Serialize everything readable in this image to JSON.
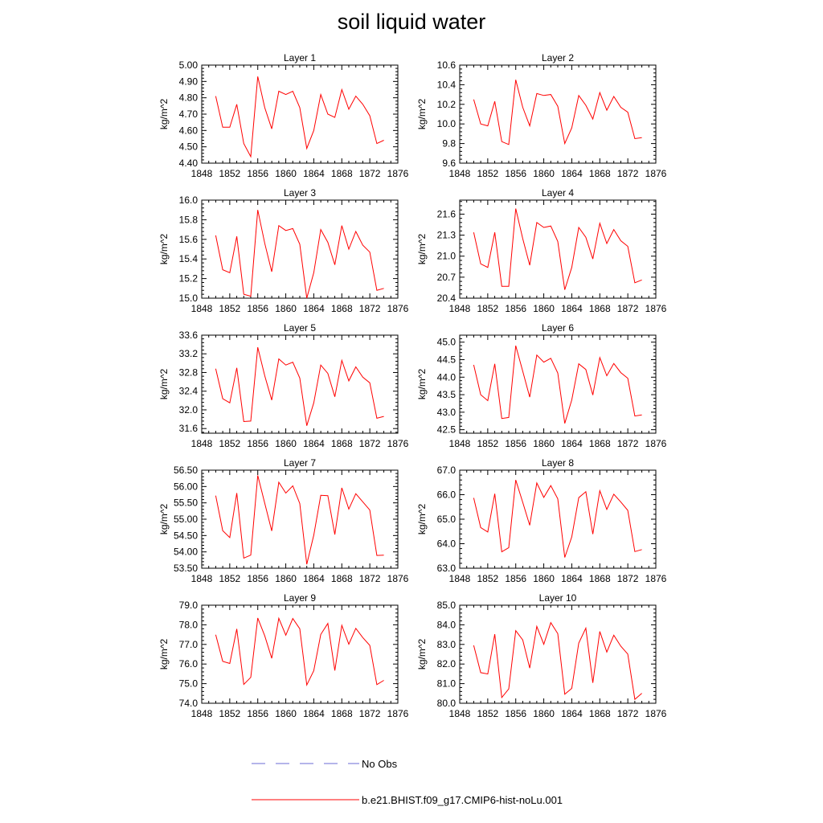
{
  "title": "soil liquid water",
  "colors": {
    "model": "#ff0000",
    "obs": "#6b6bd6",
    "axis": "#000000"
  },
  "legend": {
    "items": [
      {
        "label": "No Obs",
        "style": "dashed",
        "color": "#6b6bd6"
      },
      {
        "label": "b.e21.BHIST.f09_g17.CMIP6-hist-noLu.001",
        "style": "solid",
        "color": "#ff0000"
      }
    ]
  },
  "chart_data": [
    {
      "type": "line",
      "title": "Layer 1",
      "xlabel": "",
      "ylabel": "kg/m^2",
      "xlim": [
        1848,
        1876
      ],
      "ylim": [
        4.4,
        5.0
      ],
      "xticks": [
        1848,
        1852,
        1856,
        1860,
        1864,
        1868,
        1872,
        1876
      ],
      "yticks": [
        "4.40",
        "4.50",
        "4.60",
        "4.70",
        "4.80",
        "4.90",
        "5.00"
      ],
      "x": [
        1850,
        1851,
        1852,
        1853,
        1854,
        1855,
        1856,
        1857,
        1858,
        1859,
        1860,
        1861,
        1862,
        1863,
        1864,
        1865,
        1866,
        1867,
        1868,
        1869,
        1870,
        1871,
        1872,
        1873,
        1874
      ],
      "series": [
        {
          "values": [
            4.81,
            4.62,
            4.62,
            4.76,
            4.52,
            4.44,
            4.93,
            4.74,
            4.61,
            4.84,
            4.82,
            4.84,
            4.74,
            4.49,
            4.6,
            4.82,
            4.7,
            4.68,
            4.85,
            4.73,
            4.81,
            4.76,
            4.69,
            4.52,
            4.54
          ]
        }
      ]
    },
    {
      "type": "line",
      "title": "Layer 2",
      "xlabel": "",
      "ylabel": "kg/m^2",
      "xlim": [
        1848,
        1876
      ],
      "ylim": [
        9.6,
        10.6
      ],
      "xticks": [
        1848,
        1852,
        1856,
        1860,
        1864,
        1868,
        1872,
        1876
      ],
      "yticks": [
        "9.6",
        "9.8",
        "10.0",
        "10.2",
        "10.4",
        "10.6"
      ],
      "x": [
        1850,
        1851,
        1852,
        1853,
        1854,
        1855,
        1856,
        1857,
        1858,
        1859,
        1860,
        1861,
        1862,
        1863,
        1864,
        1865,
        1866,
        1867,
        1868,
        1869,
        1870,
        1871,
        1872,
        1873,
        1874
      ],
      "series": [
        {
          "values": [
            10.25,
            10.0,
            9.98,
            10.23,
            9.82,
            9.79,
            10.45,
            10.17,
            9.98,
            10.31,
            10.29,
            10.3,
            10.18,
            9.8,
            9.96,
            10.29,
            10.19,
            10.05,
            10.32,
            10.14,
            10.28,
            10.17,
            10.12,
            9.85,
            9.86
          ]
        }
      ]
    },
    {
      "type": "line",
      "title": "Layer 3",
      "xlabel": "",
      "ylabel": "kg/m^2",
      "xlim": [
        1848,
        1876
      ],
      "ylim": [
        15.0,
        16.0
      ],
      "xticks": [
        1848,
        1852,
        1856,
        1860,
        1864,
        1868,
        1872,
        1876
      ],
      "yticks": [
        "15.0",
        "15.2",
        "15.4",
        "15.6",
        "15.8",
        "16.0"
      ],
      "x": [
        1850,
        1851,
        1852,
        1853,
        1854,
        1855,
        1856,
        1857,
        1858,
        1859,
        1860,
        1861,
        1862,
        1863,
        1864,
        1865,
        1866,
        1867,
        1868,
        1869,
        1870,
        1871,
        1872,
        1873,
        1874
      ],
      "series": [
        {
          "values": [
            15.64,
            15.29,
            15.26,
            15.63,
            15.04,
            15.02,
            15.9,
            15.56,
            15.27,
            15.74,
            15.69,
            15.71,
            15.55,
            15.0,
            15.26,
            15.7,
            15.57,
            15.34,
            15.74,
            15.5,
            15.68,
            15.54,
            15.47,
            15.08,
            15.1
          ]
        }
      ]
    },
    {
      "type": "line",
      "title": "Layer 4",
      "xlabel": "",
      "ylabel": "kg/m^2",
      "xlim": [
        1848,
        1876
      ],
      "ylim": [
        20.4,
        21.8
      ],
      "xticks": [
        1848,
        1852,
        1856,
        1860,
        1864,
        1868,
        1872,
        1876
      ],
      "yticks": [
        "20.4",
        "20.7",
        "21.0",
        "21.3",
        "21.6"
      ],
      "x": [
        1850,
        1851,
        1852,
        1853,
        1854,
        1855,
        1856,
        1857,
        1858,
        1859,
        1860,
        1861,
        1862,
        1863,
        1864,
        1865,
        1866,
        1867,
        1868,
        1869,
        1870,
        1871,
        1872,
        1873,
        1874
      ],
      "series": [
        {
          "values": [
            21.34,
            20.89,
            20.84,
            21.34,
            20.57,
            20.57,
            21.68,
            21.25,
            20.87,
            21.48,
            21.41,
            21.43,
            21.21,
            20.52,
            20.84,
            21.41,
            21.27,
            20.96,
            21.47,
            21.18,
            21.38,
            21.22,
            21.14,
            20.62,
            20.66
          ]
        }
      ]
    },
    {
      "type": "line",
      "title": "Layer 5",
      "xlabel": "",
      "ylabel": "kg/m^2",
      "xlim": [
        1848,
        1876
      ],
      "ylim": [
        31.5,
        33.6
      ],
      "xticks": [
        1848,
        1852,
        1856,
        1860,
        1864,
        1868,
        1872,
        1876
      ],
      "yticks": [
        "31.6",
        "32.0",
        "32.4",
        "32.8",
        "33.2",
        "33.6"
      ],
      "x": [
        1850,
        1851,
        1852,
        1853,
        1854,
        1855,
        1856,
        1857,
        1858,
        1859,
        1860,
        1861,
        1862,
        1863,
        1864,
        1865,
        1866,
        1867,
        1868,
        1869,
        1870,
        1871,
        1872,
        1873,
        1874
      ],
      "series": [
        {
          "values": [
            32.88,
            32.24,
            32.15,
            32.9,
            31.75,
            31.76,
            33.34,
            32.73,
            32.21,
            33.09,
            32.96,
            33.02,
            32.68,
            31.66,
            32.15,
            32.96,
            32.78,
            32.28,
            33.06,
            32.62,
            32.92,
            32.7,
            32.58,
            31.82,
            31.86
          ]
        }
      ]
    },
    {
      "type": "line",
      "title": "Layer 6",
      "xlabel": "",
      "ylabel": "kg/m^2",
      "xlim": [
        1848,
        1876
      ],
      "ylim": [
        42.4,
        45.2
      ],
      "xticks": [
        1848,
        1852,
        1856,
        1860,
        1864,
        1868,
        1872,
        1876
      ],
      "yticks": [
        "42.5",
        "43.0",
        "43.5",
        "44.0",
        "44.5",
        "45.0"
      ],
      "x": [
        1850,
        1851,
        1852,
        1853,
        1854,
        1855,
        1856,
        1857,
        1858,
        1859,
        1860,
        1861,
        1862,
        1863,
        1864,
        1865,
        1866,
        1867,
        1868,
        1869,
        1870,
        1871,
        1872,
        1873,
        1874
      ],
      "series": [
        {
          "values": [
            44.35,
            43.5,
            43.33,
            44.38,
            42.82,
            42.85,
            44.9,
            44.17,
            43.43,
            44.63,
            44.43,
            44.54,
            44.12,
            42.68,
            43.35,
            44.38,
            44.22,
            43.49,
            44.56,
            44.04,
            44.39,
            44.13,
            43.97,
            42.89,
            42.92
          ]
        }
      ]
    },
    {
      "type": "line",
      "title": "Layer 7",
      "xlabel": "",
      "ylabel": "kg/m^2",
      "xlim": [
        1848,
        1876
      ],
      "ylim": [
        53.5,
        56.5
      ],
      "xticks": [
        1848,
        1852,
        1856,
        1860,
        1864,
        1868,
        1872,
        1876
      ],
      "yticks": [
        "53.50",
        "54.00",
        "54.50",
        "55.00",
        "55.50",
        "56.00",
        "56.50"
      ],
      "x": [
        1850,
        1851,
        1852,
        1853,
        1854,
        1855,
        1856,
        1857,
        1858,
        1859,
        1860,
        1861,
        1862,
        1863,
        1864,
        1865,
        1866,
        1867,
        1868,
        1869,
        1870,
        1871,
        1872,
        1873,
        1874
      ],
      "series": [
        {
          "values": [
            55.72,
            54.65,
            54.44,
            55.8,
            53.81,
            53.9,
            56.34,
            55.49,
            54.64,
            56.13,
            55.8,
            56.02,
            55.48,
            53.62,
            54.51,
            55.73,
            55.72,
            54.53,
            55.96,
            55.31,
            55.78,
            55.53,
            55.28,
            53.89,
            53.9
          ]
        }
      ]
    },
    {
      "type": "line",
      "title": "Layer 8",
      "xlabel": "",
      "ylabel": "kg/m^2",
      "xlim": [
        1848,
        1876
      ],
      "ylim": [
        63.0,
        67.0
      ],
      "xticks": [
        1848,
        1852,
        1856,
        1860,
        1864,
        1868,
        1872,
        1876
      ],
      "yticks": [
        "63.0",
        "64.0",
        "65.0",
        "66.0",
        "67.0"
      ],
      "x": [
        1850,
        1851,
        1852,
        1853,
        1854,
        1855,
        1856,
        1857,
        1858,
        1859,
        1860,
        1861,
        1862,
        1863,
        1864,
        1865,
        1866,
        1867,
        1868,
        1869,
        1870,
        1871,
        1872,
        1873,
        1874
      ],
      "series": [
        {
          "values": [
            65.87,
            64.66,
            64.48,
            66.04,
            63.67,
            63.84,
            66.6,
            65.69,
            64.75,
            66.48,
            65.89,
            66.37,
            65.83,
            63.44,
            64.28,
            65.88,
            66.12,
            64.39,
            66.16,
            65.4,
            66.02,
            65.7,
            65.36,
            63.68,
            63.76
          ]
        }
      ]
    },
    {
      "type": "line",
      "title": "Layer 9",
      "xlabel": "",
      "ylabel": "kg/m^2",
      "xlim": [
        1848,
        1876
      ],
      "ylim": [
        74.0,
        79.0
      ],
      "xticks": [
        1848,
        1852,
        1856,
        1860,
        1864,
        1868,
        1872,
        1876
      ],
      "yticks": [
        "74.0",
        "75.0",
        "76.0",
        "77.0",
        "78.0",
        "79.0"
      ],
      "x": [
        1850,
        1851,
        1852,
        1853,
        1854,
        1855,
        1856,
        1857,
        1858,
        1859,
        1860,
        1861,
        1862,
        1863,
        1864,
        1865,
        1866,
        1867,
        1868,
        1869,
        1870,
        1871,
        1872,
        1873,
        1874
      ],
      "series": [
        {
          "values": [
            77.49,
            76.14,
            76.03,
            77.79,
            74.96,
            75.32,
            78.35,
            77.44,
            76.29,
            78.33,
            77.47,
            78.32,
            77.8,
            74.93,
            75.66,
            77.51,
            78.07,
            75.67,
            77.97,
            77.01,
            77.82,
            77.35,
            76.95,
            74.95,
            75.17
          ]
        }
      ]
    },
    {
      "type": "line",
      "title": "Layer 10",
      "xlabel": "",
      "ylabel": "kg/m^2",
      "xlim": [
        1848,
        1876
      ],
      "ylim": [
        80.0,
        85.0
      ],
      "xticks": [
        1848,
        1852,
        1856,
        1860,
        1864,
        1868,
        1872,
        1876
      ],
      "yticks": [
        "80.0",
        "81.0",
        "82.0",
        "83.0",
        "84.0",
        "85.0"
      ],
      "x": [
        1850,
        1851,
        1852,
        1853,
        1854,
        1855,
        1856,
        1857,
        1858,
        1859,
        1860,
        1861,
        1862,
        1863,
        1864,
        1865,
        1866,
        1867,
        1868,
        1869,
        1870,
        1871,
        1872,
        1873,
        1874
      ],
      "series": [
        {
          "values": [
            82.95,
            81.56,
            81.49,
            83.52,
            80.29,
            80.73,
            83.7,
            83.23,
            81.79,
            83.92,
            83.01,
            84.11,
            83.55,
            80.46,
            80.76,
            83.07,
            83.83,
            81.04,
            83.66,
            82.61,
            83.47,
            82.91,
            82.51,
            80.2,
            80.51
          ]
        }
      ]
    }
  ]
}
